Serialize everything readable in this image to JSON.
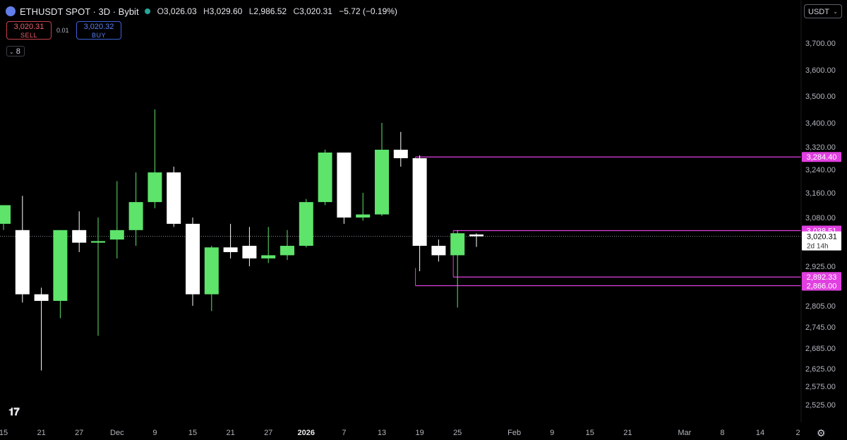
{
  "header": {
    "symbol_title": "ETHUSDT SPOT · 3D · Bybit",
    "ohlc": [
      {
        "key": "O",
        "value": "3,026.03"
      },
      {
        "key": "H",
        "value": "3,029.60"
      },
      {
        "key": "L",
        "value": "2,986.52"
      },
      {
        "key": "C",
        "value": "3,020.31"
      }
    ],
    "change": "−5.72 (−0.19%)"
  },
  "trade": {
    "sell_price": "3,020.31",
    "sell_label": "SELL",
    "spread": "0.01",
    "buy_price": "3,020.32",
    "buy_label": "BUY"
  },
  "indicator_count": "8",
  "currency_button": "USDT",
  "colors": {
    "up": "#5ee36b",
    "down": "#ffffff",
    "zone": "#e040e0",
    "axis_text": "#b2b5be",
    "last_price_line": "#8a8d96"
  },
  "chart_data": {
    "type": "candlestick",
    "symbol": "ETHUSDT",
    "interval": "3D",
    "ylim": [
      2490,
      3780
    ],
    "y_ticks": [
      {
        "v": 3700,
        "label": "3,700.00"
      },
      {
        "v": 3600,
        "label": "3,600.00"
      },
      {
        "v": 3500,
        "label": "3,500.00"
      },
      {
        "v": 3400,
        "label": "3,400.00"
      },
      {
        "v": 3320,
        "label": "3,320.00"
      },
      {
        "v": 3240,
        "label": "3,240.00"
      },
      {
        "v": 3160,
        "label": "3,160.00"
      },
      {
        "v": 3080,
        "label": "3,080.00"
      },
      {
        "v": 2925,
        "label": "2,925.00"
      },
      {
        "v": 2805,
        "label": "2,805.00"
      },
      {
        "v": 2745,
        "label": "2,745.00"
      },
      {
        "v": 2685,
        "label": "2,685.00"
      },
      {
        "v": 2625,
        "label": "2,625.00"
      },
      {
        "v": 2575,
        "label": "2,575.00"
      },
      {
        "v": 2525,
        "label": "2,525.00"
      }
    ],
    "x_ticks": [
      {
        "i": 0,
        "label": "15"
      },
      {
        "i": 2,
        "label": "21"
      },
      {
        "i": 4,
        "label": "27"
      },
      {
        "i": 6,
        "label": "Dec"
      },
      {
        "i": 8,
        "label": "9"
      },
      {
        "i": 10,
        "label": "15"
      },
      {
        "i": 12,
        "label": "21"
      },
      {
        "i": 14,
        "label": "27"
      },
      {
        "i": 16,
        "label": "2026"
      },
      {
        "i": 18,
        "label": "7"
      },
      {
        "i": 20,
        "label": "13"
      },
      {
        "i": 22,
        "label": "19"
      },
      {
        "i": 24,
        "label": "25"
      },
      {
        "i": 27,
        "label": "Feb"
      },
      {
        "i": 29,
        "label": "9"
      },
      {
        "i": 31,
        "label": "15"
      },
      {
        "i": 33,
        "label": "21"
      },
      {
        "i": 36,
        "label": "Mar"
      },
      {
        "i": 38,
        "label": "8"
      },
      {
        "i": 40,
        "label": "14"
      },
      {
        "i": 42,
        "label": "2"
      }
    ],
    "candles": [
      {
        "o": 3060,
        "h": 3120,
        "l": 3040,
        "c": 3120
      },
      {
        "o": 3040,
        "h": 3150,
        "l": 2815,
        "c": 2840
      },
      {
        "o": 2840,
        "h": 2860,
        "l": 2620,
        "c": 2820
      },
      {
        "o": 2820,
        "h": 3040,
        "l": 2770,
        "c": 3040
      },
      {
        "o": 3040,
        "h": 3100,
        "l": 2970,
        "c": 3000
      },
      {
        "o": 3000,
        "h": 3080,
        "l": 2720,
        "c": 3005
      },
      {
        "o": 3010,
        "h": 3200,
        "l": 2950,
        "c": 3040
      },
      {
        "o": 3040,
        "h": 3230,
        "l": 2990,
        "c": 3130
      },
      {
        "o": 3130,
        "h": 3450,
        "l": 3110,
        "c": 3230
      },
      {
        "o": 3230,
        "h": 3250,
        "l": 3050,
        "c": 3060
      },
      {
        "o": 3060,
        "h": 3080,
        "l": 2805,
        "c": 2840
      },
      {
        "o": 2840,
        "h": 2990,
        "l": 2790,
        "c": 2985
      },
      {
        "o": 2985,
        "h": 3060,
        "l": 2950,
        "c": 2970
      },
      {
        "o": 2990,
        "h": 3050,
        "l": 2925,
        "c": 2950
      },
      {
        "o": 2950,
        "h": 3050,
        "l": 2935,
        "c": 2960
      },
      {
        "o": 2960,
        "h": 3040,
        "l": 2945,
        "c": 2990
      },
      {
        "o": 2990,
        "h": 3140,
        "l": 2985,
        "c": 3130
      },
      {
        "o": 3130,
        "h": 3310,
        "l": 3120,
        "c": 3300
      },
      {
        "o": 3300,
        "h": 3300,
        "l": 3060,
        "c": 3080
      },
      {
        "o": 3080,
        "h": 3160,
        "l": 3070,
        "c": 3090
      },
      {
        "o": 3090,
        "h": 3400,
        "l": 3085,
        "c": 3310
      },
      {
        "o": 3310,
        "h": 3370,
        "l": 3250,
        "c": 3280
      },
      {
        "o": 3280,
        "h": 3290,
        "l": 2910,
        "c": 2990
      },
      {
        "o": 2990,
        "h": 3010,
        "l": 2940,
        "c": 2960
      },
      {
        "o": 2960,
        "h": 3040,
        "l": 2800,
        "c": 3030
      },
      {
        "o": 3026.03,
        "h": 3029.6,
        "l": 2986.52,
        "c": 3020.31
      }
    ],
    "zones": [
      {
        "label": "3,284.40",
        "value": 3284.4,
        "from": 22
      },
      {
        "label": "3,038.51",
        "value": 3038.51,
        "from": 24
      },
      {
        "label": "2,892.33",
        "value": 2892.33,
        "from": 24
      },
      {
        "label": "2,866.00",
        "value": 2866.0,
        "from": 22
      }
    ],
    "last_price": {
      "label": "3,020.31",
      "value": 3020.31,
      "countdown": "2d 14h"
    }
  }
}
